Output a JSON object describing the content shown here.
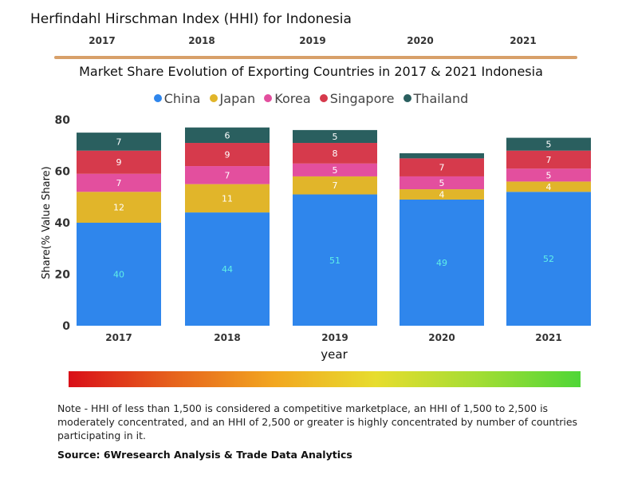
{
  "hhi": {
    "title": "Herfindahl Hirschman Index (HHI) for Indonesia",
    "years": [
      "2017",
      "2018",
      "2019",
      "2020",
      "2021"
    ]
  },
  "chart_data": {
    "type": "bar",
    "stacked": true,
    "title": "Market Share Evolution of Exporting Countries in 2017 & 2021 Indonesia",
    "xlabel": "year",
    "ylabel": "Share(% Value Share)",
    "ylim": [
      0,
      80
    ],
    "yticks": [
      0,
      20,
      40,
      60,
      80
    ],
    "categories": [
      "2017",
      "2018",
      "2019",
      "2020",
      "2021"
    ],
    "legend_position": "top-center",
    "series": [
      {
        "name": "China",
        "color": "#2f86ec",
        "values": [
          40,
          44,
          51,
          49,
          52
        ],
        "labels": [
          "40",
          "44",
          "51",
          "49",
          "52"
        ],
        "label_color": "#5ff0e8"
      },
      {
        "name": "Japan",
        "color": "#e1b52a",
        "values": [
          12,
          11,
          7,
          4,
          4
        ],
        "labels": [
          "12",
          "11",
          "7",
          "4",
          "4"
        ],
        "label_color": "#ffffff"
      },
      {
        "name": "Korea",
        "color": "#e34f9e",
        "values": [
          7,
          7,
          5,
          5,
          5
        ],
        "labels": [
          "7",
          "7",
          "5",
          "5",
          "5"
        ],
        "label_color": "#ffffff"
      },
      {
        "name": "Singapore",
        "color": "#d63a4c",
        "values": [
          9,
          9,
          8,
          7,
          7
        ],
        "labels": [
          "9",
          "9",
          "8",
          "7",
          "7"
        ],
        "label_color": "#ffffff"
      },
      {
        "name": "Thailand",
        "color": "#2a5f5f",
        "values": [
          7,
          6,
          5,
          2,
          5
        ],
        "labels": [
          "7",
          "6",
          "5",
          "",
          "5"
        ],
        "label_color": "#ffffff"
      }
    ]
  },
  "note": "Note - HHI of less than 1,500 is considered a competitive marketplace, an HHI of 1,500 to 2,500 is moderately concentrated, and an HHI of 2,500 or greater is highly concentrated by number of countries participating in it.",
  "source": "Source: 6Wresearch Analysis & Trade Data Analytics"
}
